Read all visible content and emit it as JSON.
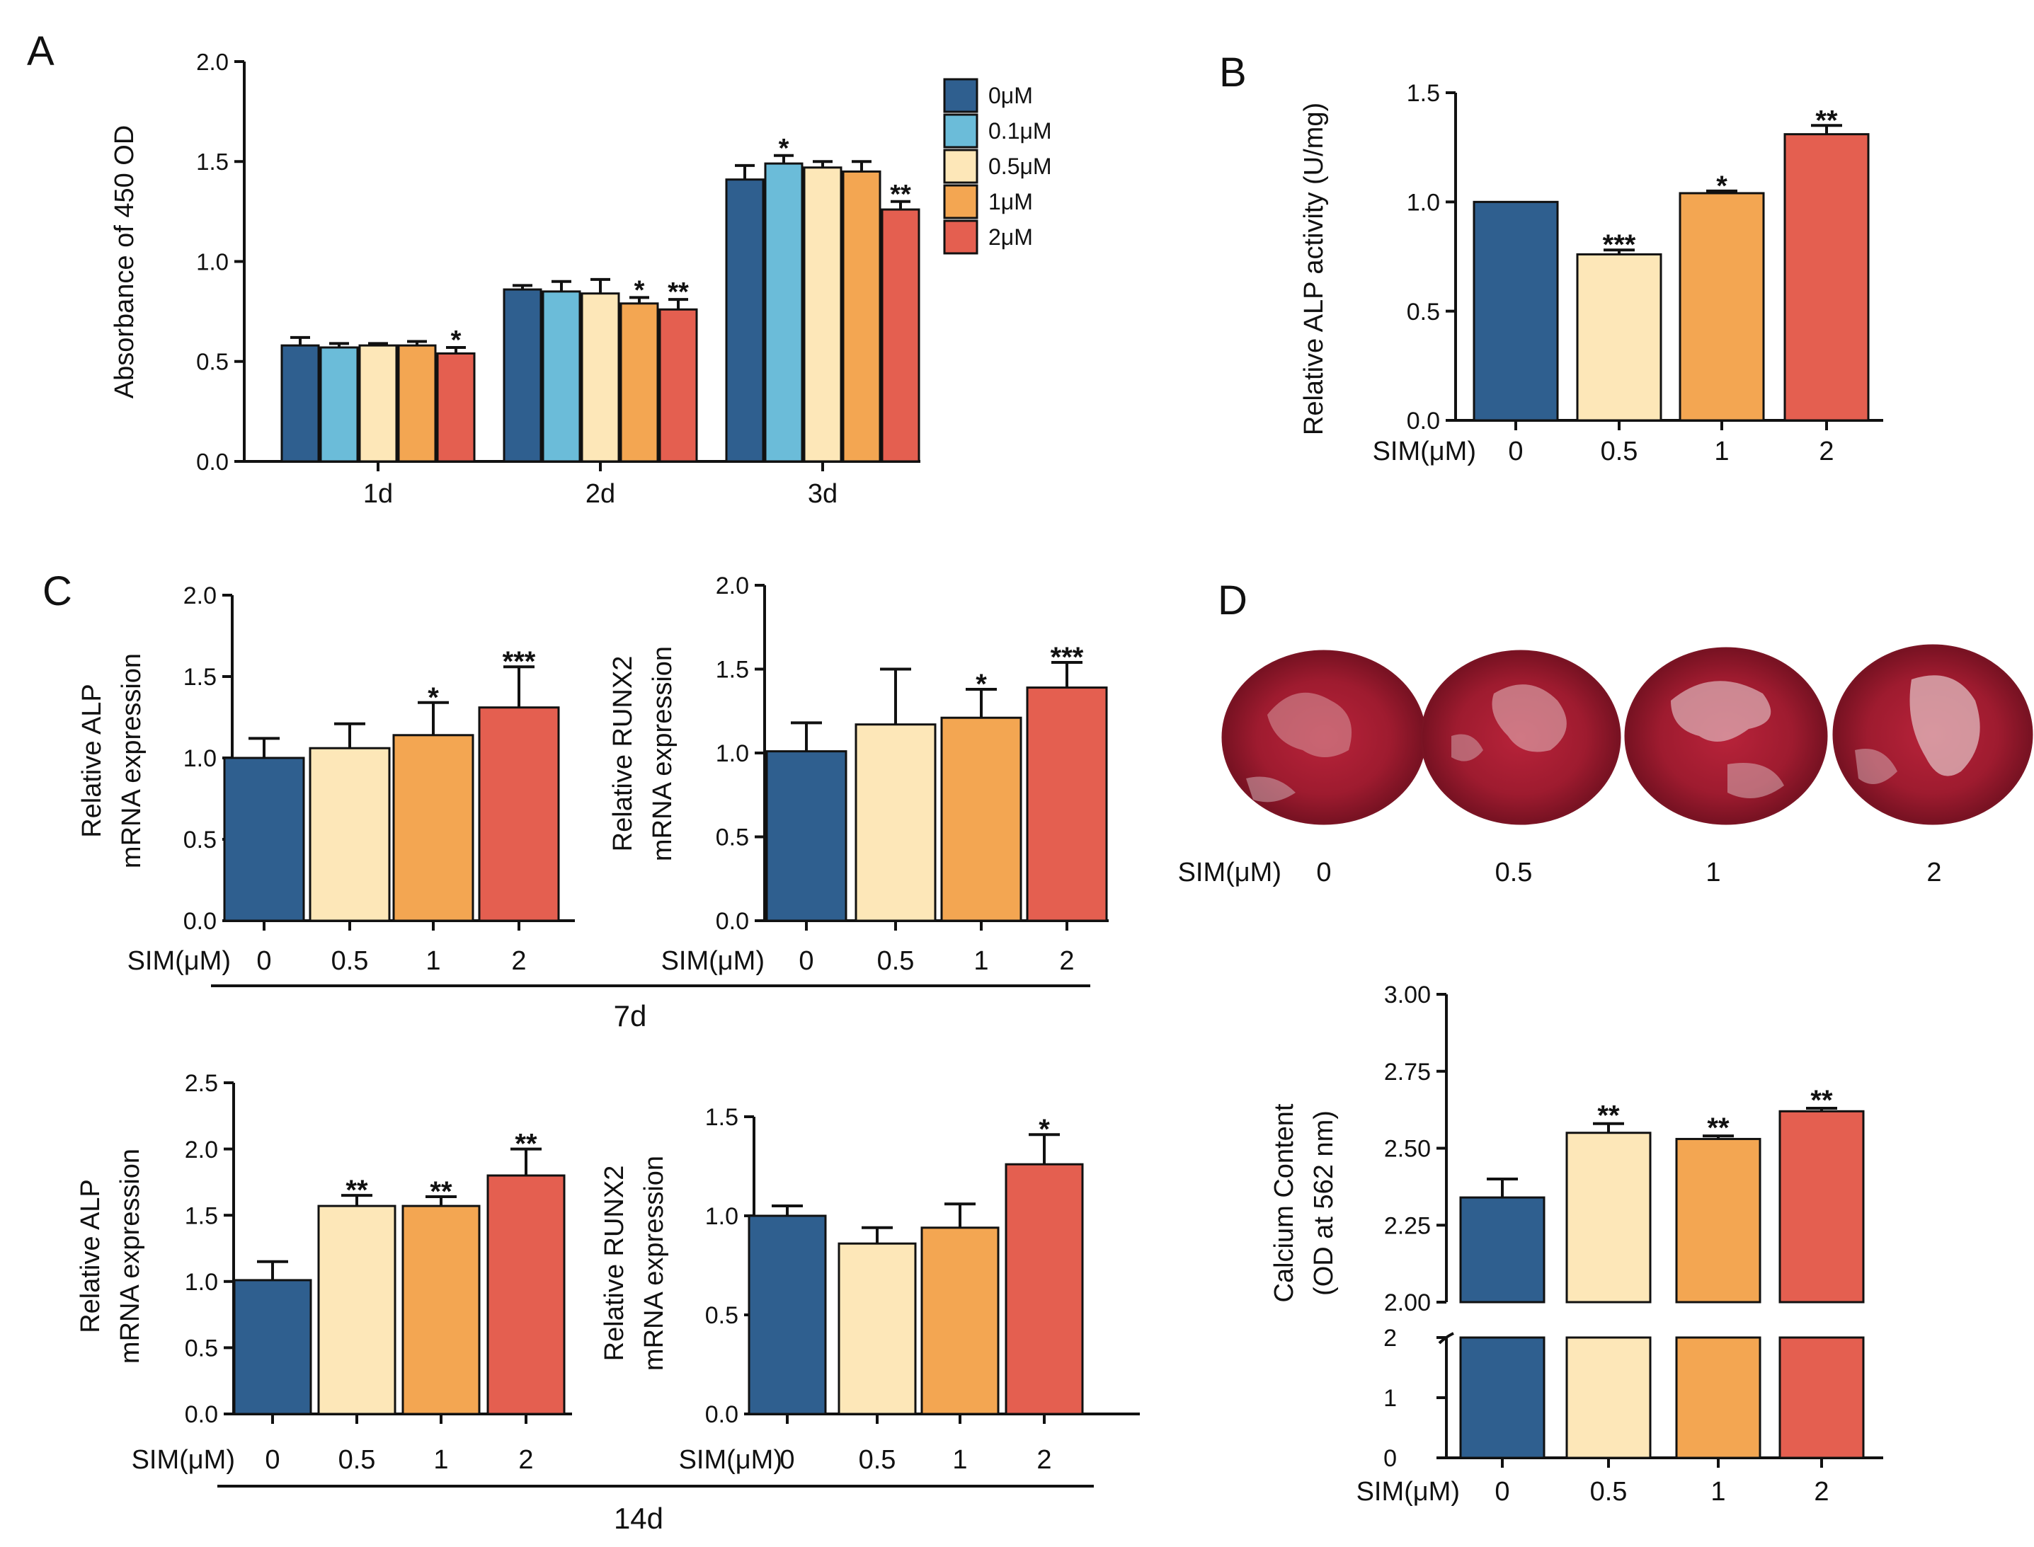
{
  "colors": {
    "c0": "#2f5f8f",
    "c01": "#6bbcd9",
    "c05": "#fde7b8",
    "c1": "#f3a652",
    "c2": "#e45f50"
  },
  "chart_data": [
    {
      "id": "A",
      "panel_label": "A",
      "type": "bar",
      "title": "",
      "xlabel": "",
      "ylabel": "Absorbance of 450 OD",
      "ylim": [
        0,
        2.0
      ],
      "yticks": [
        "0.0",
        "0.5",
        "1.0",
        "1.5",
        "2.0"
      ],
      "categories": [
        "1d",
        "2d",
        "3d"
      ],
      "legend": [
        "0μM",
        "0.1μM",
        "0.5μM",
        "1μM",
        "2μM"
      ],
      "series": [
        {
          "name": "0μM",
          "values": [
            0.58,
            0.86,
            1.41
          ],
          "err": [
            0.04,
            0.02,
            0.07
          ],
          "sig": [
            "",
            "",
            ""
          ]
        },
        {
          "name": "0.1μM",
          "values": [
            0.57,
            0.85,
            1.49
          ],
          "err": [
            0.02,
            0.05,
            0.04
          ],
          "sig": [
            "",
            "",
            "*"
          ]
        },
        {
          "name": "0.5μM",
          "values": [
            0.58,
            0.84,
            1.47
          ],
          "err": [
            0.01,
            0.07,
            0.03
          ],
          "sig": [
            "",
            "",
            ""
          ]
        },
        {
          "name": "1μM",
          "values": [
            0.58,
            0.79,
            1.45
          ],
          "err": [
            0.02,
            0.03,
            0.05
          ],
          "sig": [
            "",
            "*",
            ""
          ]
        },
        {
          "name": "2μM",
          "values": [
            0.54,
            0.76,
            1.26
          ],
          "err": [
            0.03,
            0.05,
            0.04
          ],
          "sig": [
            "*",
            "**",
            "**"
          ]
        }
      ]
    },
    {
      "id": "B",
      "panel_label": "B",
      "type": "bar",
      "title": "",
      "xlabel": "SIM(μM)",
      "ylabel": "Relative ALP activity (U/mg)",
      "ylim": [
        0,
        1.5
      ],
      "yticks": [
        "0.0",
        "0.5",
        "1.0",
        "1.5"
      ],
      "categories": [
        "0",
        "0.5",
        "1",
        "2"
      ],
      "values": [
        1.0,
        0.76,
        1.04,
        1.31
      ],
      "err": [
        0.0,
        0.02,
        0.01,
        0.04
      ],
      "sig": [
        "",
        "***",
        "*",
        "**"
      ]
    },
    {
      "id": "C1",
      "panel_label": "C",
      "type": "bar",
      "title": "",
      "xlabel": "SIM(μM)",
      "ylabel": [
        "Relative ALP",
        "mRNA expression"
      ],
      "ylim": [
        0,
        2.0
      ],
      "yticks": [
        "0.0",
        "0.5",
        "1.0",
        "1.5",
        "2.0"
      ],
      "categories": [
        "0",
        "0.5",
        "1",
        "2"
      ],
      "values": [
        1.0,
        1.06,
        1.14,
        1.31
      ],
      "err": [
        0.12,
        0.15,
        0.2,
        0.25
      ],
      "sig": [
        "",
        "",
        "*",
        "***"
      ]
    },
    {
      "id": "C2",
      "type": "bar",
      "title": "",
      "xlabel": "SIM(μM)",
      "ylabel": [
        "Relative RUNX2",
        "mRNA expression"
      ],
      "ylim": [
        0,
        2.0
      ],
      "yticks": [
        "0.0",
        "0.5",
        "1.0",
        "1.5",
        "2.0"
      ],
      "categories": [
        "0",
        "0.5",
        "1",
        "2"
      ],
      "values": [
        1.01,
        1.17,
        1.21,
        1.39
      ],
      "err": [
        0.17,
        0.33,
        0.17,
        0.15
      ],
      "sig": [
        "",
        "",
        "*",
        "***"
      ]
    },
    {
      "id": "C3",
      "type": "bar",
      "title": "",
      "xlabel": "SIM(μM)",
      "ylabel": [
        "Relative ALP",
        "mRNA expression"
      ],
      "ylim": [
        0,
        2.5
      ],
      "yticks": [
        "0.0",
        "0.5",
        "1.0",
        "1.5",
        "2.0",
        "2.5"
      ],
      "categories": [
        "0",
        "0.5",
        "1",
        "2"
      ],
      "values": [
        1.01,
        1.57,
        1.57,
        1.8
      ],
      "err": [
        0.14,
        0.08,
        0.07,
        0.2
      ],
      "sig": [
        "",
        "**",
        "**",
        "**"
      ]
    },
    {
      "id": "C4",
      "type": "bar",
      "title": "",
      "xlabel": "SIM(μM)",
      "ylabel": [
        "Relative RUNX2",
        "mRNA expression"
      ],
      "ylim": [
        0,
        1.5
      ],
      "yticks": [
        "0.0",
        "0.5",
        "1.0",
        "1.5"
      ],
      "categories": [
        "0",
        "0.5",
        "1",
        "2"
      ],
      "values": [
        1.0,
        0.86,
        0.94,
        1.26
      ],
      "err": [
        0.05,
        0.08,
        0.12,
        0.15
      ],
      "sig": [
        "",
        "",
        "",
        "*"
      ]
    },
    {
      "id": "D",
      "panel_label": "D",
      "type": "bar",
      "title": "",
      "xlabel": "SIM(μM)",
      "ylabel": [
        "Calcium Content",
        "(OD at 562 nm)"
      ],
      "ylim": [
        0,
        3.0
      ],
      "axis_break": [
        2.0,
        2.0
      ],
      "yticks_upper": [
        "2.00",
        "2.25",
        "2.50",
        "2.75",
        "3.00"
      ],
      "yticks_lower": [
        "0",
        "1",
        "2"
      ],
      "categories": [
        "0",
        "0.5",
        "1",
        "2"
      ],
      "values": [
        2.34,
        2.55,
        2.53,
        2.62
      ],
      "err": [
        0.06,
        0.03,
        0.01,
        0.01
      ],
      "sig": [
        "",
        "**",
        "**",
        "**"
      ]
    }
  ],
  "group_labels": {
    "d7": "7d",
    "d14": "14d"
  },
  "stain_row": {
    "xlabel": "SIM(μM)",
    "labels": [
      "0",
      "0.5",
      "1",
      "2"
    ]
  }
}
